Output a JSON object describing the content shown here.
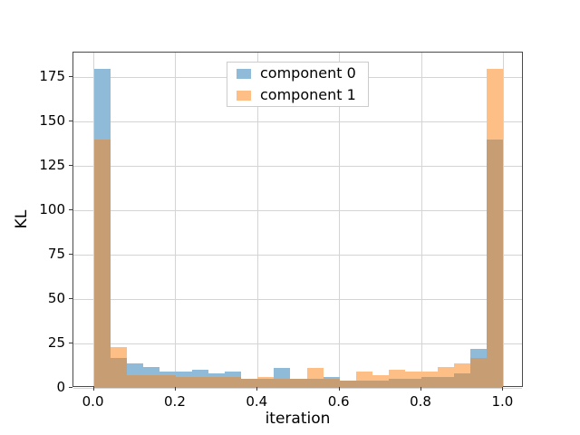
{
  "figure": {
    "background": "#ffffff",
    "title": ""
  },
  "chart_data": {
    "type": "bar",
    "subtype": "overlaid-histogram",
    "title": "",
    "xlabel": "iteration",
    "ylabel": "KL",
    "bins": 25,
    "bin_start": 0.0,
    "bin_width": 0.04,
    "xlim": [
      -0.05,
      1.05
    ],
    "ylim": [
      0,
      189
    ],
    "grid": true,
    "legend_position": "upper center",
    "series": [
      {
        "name": "component 0",
        "color": "#8fbbd9",
        "values": [
          180,
          17,
          14,
          12,
          9,
          9,
          10,
          8,
          9,
          5,
          5,
          11,
          5,
          5,
          6,
          4,
          4,
          4,
          5,
          5,
          6,
          6,
          8,
          22,
          140
        ]
      },
      {
        "name": "component 1",
        "color": "#fdbf86",
        "values": [
          140,
          23,
          7,
          7,
          7,
          6,
          6,
          6,
          6,
          5,
          6,
          5,
          5,
          11,
          5,
          4,
          9,
          7,
          10,
          9,
          9,
          12,
          14,
          17,
          180
        ]
      }
    ],
    "overlap_color": "#c79e74",
    "xticks": [
      {
        "v": 0.0,
        "label": "0.0"
      },
      {
        "v": 0.2,
        "label": "0.2"
      },
      {
        "v": 0.4,
        "label": "0.4"
      },
      {
        "v": 0.6,
        "label": "0.6"
      },
      {
        "v": 0.8,
        "label": "0.8"
      },
      {
        "v": 1.0,
        "label": "1.0"
      }
    ],
    "yticks": [
      {
        "v": 0,
        "label": "0"
      },
      {
        "v": 25,
        "label": "25"
      },
      {
        "v": 50,
        "label": "50"
      },
      {
        "v": 75,
        "label": "75"
      },
      {
        "v": 100,
        "label": "100"
      },
      {
        "v": 125,
        "label": "125"
      },
      {
        "v": 150,
        "label": "150"
      },
      {
        "v": 175,
        "label": "175"
      }
    ]
  },
  "legend": {
    "items": [
      {
        "label": "component 0"
      },
      {
        "label": "component 1"
      }
    ]
  }
}
